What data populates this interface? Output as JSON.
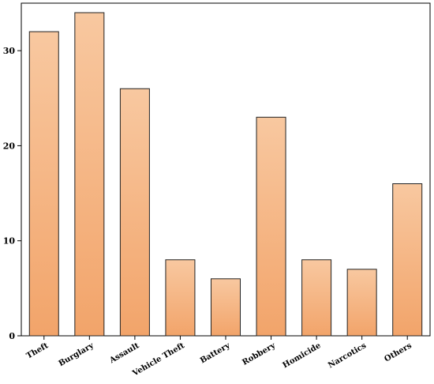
{
  "chart_data": {
    "type": "bar",
    "title": "",
    "xlabel": "",
    "ylabel": "",
    "categories": [
      "Theft",
      "Burglary",
      "Assault",
      "Vehicle Theft",
      "Battery",
      "Robbery",
      "Homicide",
      "Narcotics",
      "Others"
    ],
    "values": [
      32,
      34,
      26,
      8,
      6,
      23,
      8,
      7,
      16
    ],
    "ylim": [
      0,
      35
    ],
    "yticks": [
      0,
      10,
      20,
      30
    ],
    "grid": false,
    "legend": "none",
    "colors": {
      "bar_top": "#f8c8a0",
      "bar_bottom": "#f2a46a",
      "bar_stroke": "#222222",
      "axis": "#000000"
    }
  }
}
